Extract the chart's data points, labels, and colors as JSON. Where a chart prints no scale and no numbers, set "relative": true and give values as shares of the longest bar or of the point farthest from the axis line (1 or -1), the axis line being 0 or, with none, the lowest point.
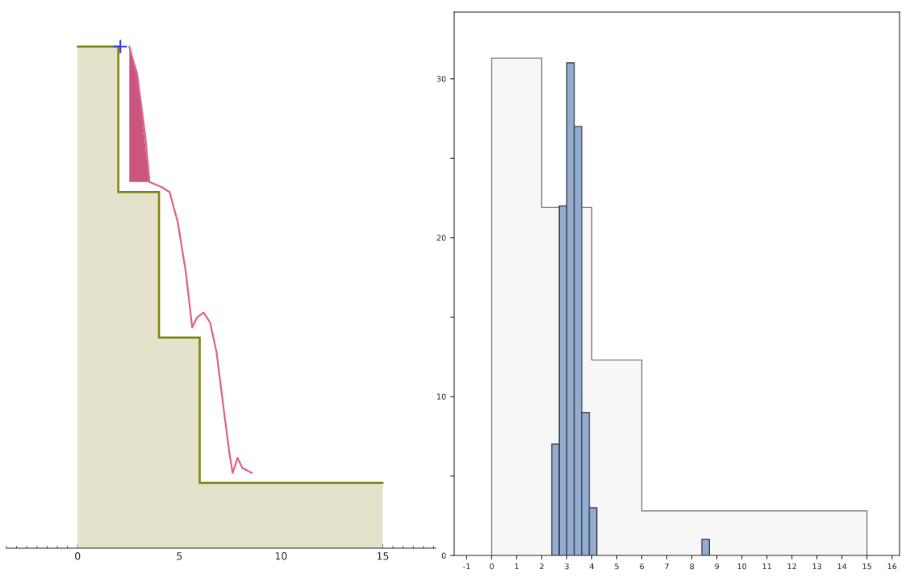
{
  "chart_data": [
    {
      "type": "area",
      "relative": true,
      "xlim": [
        -3.5,
        17.6
      ],
      "xticks": [
        0,
        5,
        10,
        15
      ],
      "tick_labels": "x",
      "grid": false,
      "legend": false,
      "series": [
        {
          "color": "#e3e3cb",
          "x": [
            0,
            2,
            2,
            4,
            4,
            6,
            6,
            15
          ],
          "values": [
            1.0,
            1.0,
            0.71,
            0.71,
            0.42,
            0.42,
            0.13,
            0.13
          ]
        },
        {
          "type": "line",
          "color": "#e0608e",
          "x": [
            2.54,
            2.94,
            3.33,
            3.53,
            4.13,
            4.52,
            4.92,
            5.32,
            5.63,
            5.87,
            6.19,
            6.51,
            6.83,
            7.14,
            7.46,
            7.62,
            7.86,
            8.1,
            8.57
          ],
          "values": [
            1.0,
            0.94,
            0.82,
            0.73,
            0.72,
            0.71,
            0.65,
            0.55,
            0.44,
            0.46,
            0.47,
            0.45,
            0.39,
            0.29,
            0.19,
            0.15,
            0.18,
            0.16,
            0.15
          ],
          "lower": [
            0.73,
            0.73,
            0.73,
            0.73,
            null,
            null,
            null,
            null,
            null,
            null,
            null,
            null,
            null,
            null,
            null,
            null,
            null,
            null,
            null
          ],
          "upper": [
            1.0,
            0.95,
            0.8,
            0.73,
            null,
            null,
            null,
            null,
            null,
            null,
            null,
            null,
            null,
            null,
            null,
            null,
            null,
            null,
            null
          ]
        },
        {
          "type": "scatter",
          "color": "#3a3ae0",
          "marker": "cross",
          "x": [
            2.1
          ],
          "values": [
            1.0
          ]
        }
      ]
    },
    {
      "type": "histogram",
      "xlim": [
        -1.5,
        16.3
      ],
      "ylim": [
        0,
        34.2
      ],
      "xticks": [
        -1,
        0,
        1,
        2,
        3,
        4,
        5,
        6,
        7,
        8,
        9,
        10,
        11,
        12,
        13,
        14,
        15,
        16
      ],
      "yticks": [
        0,
        {
          "value": 5,
          "label": null
        },
        10,
        {
          "value": 15,
          "label": null
        },
        20,
        {
          "value": 25,
          "label": null
        },
        30
      ],
      "grid": false,
      "legend": false,
      "color": "#93acd0",
      "bins": [
        2.4,
        2.7,
        3.0,
        3.3,
        3.6,
        3.9,
        4.2,
        4.5,
        4.8,
        5.1,
        5.4,
        5.7,
        6.0,
        6.3,
        6.6,
        6.9,
        7.2,
        7.5,
        7.8,
        8.1,
        8.4,
        8.7
      ],
      "values": [
        7,
        22,
        31,
        27,
        9,
        3,
        0,
        0,
        0,
        0,
        0,
        0,
        0,
        0,
        0,
        0,
        0,
        0,
        0,
        0,
        1
      ],
      "series": [
        {
          "type": "area",
          "color": "#f7f7f7",
          "x": [
            0,
            0,
            2,
            2,
            4,
            4,
            6,
            6,
            15,
            15
          ],
          "values": [
            0,
            31.3,
            31.3,
            21.9,
            21.9,
            12.3,
            12.3,
            2.8,
            2.8,
            0
          ]
        }
      ]
    }
  ]
}
